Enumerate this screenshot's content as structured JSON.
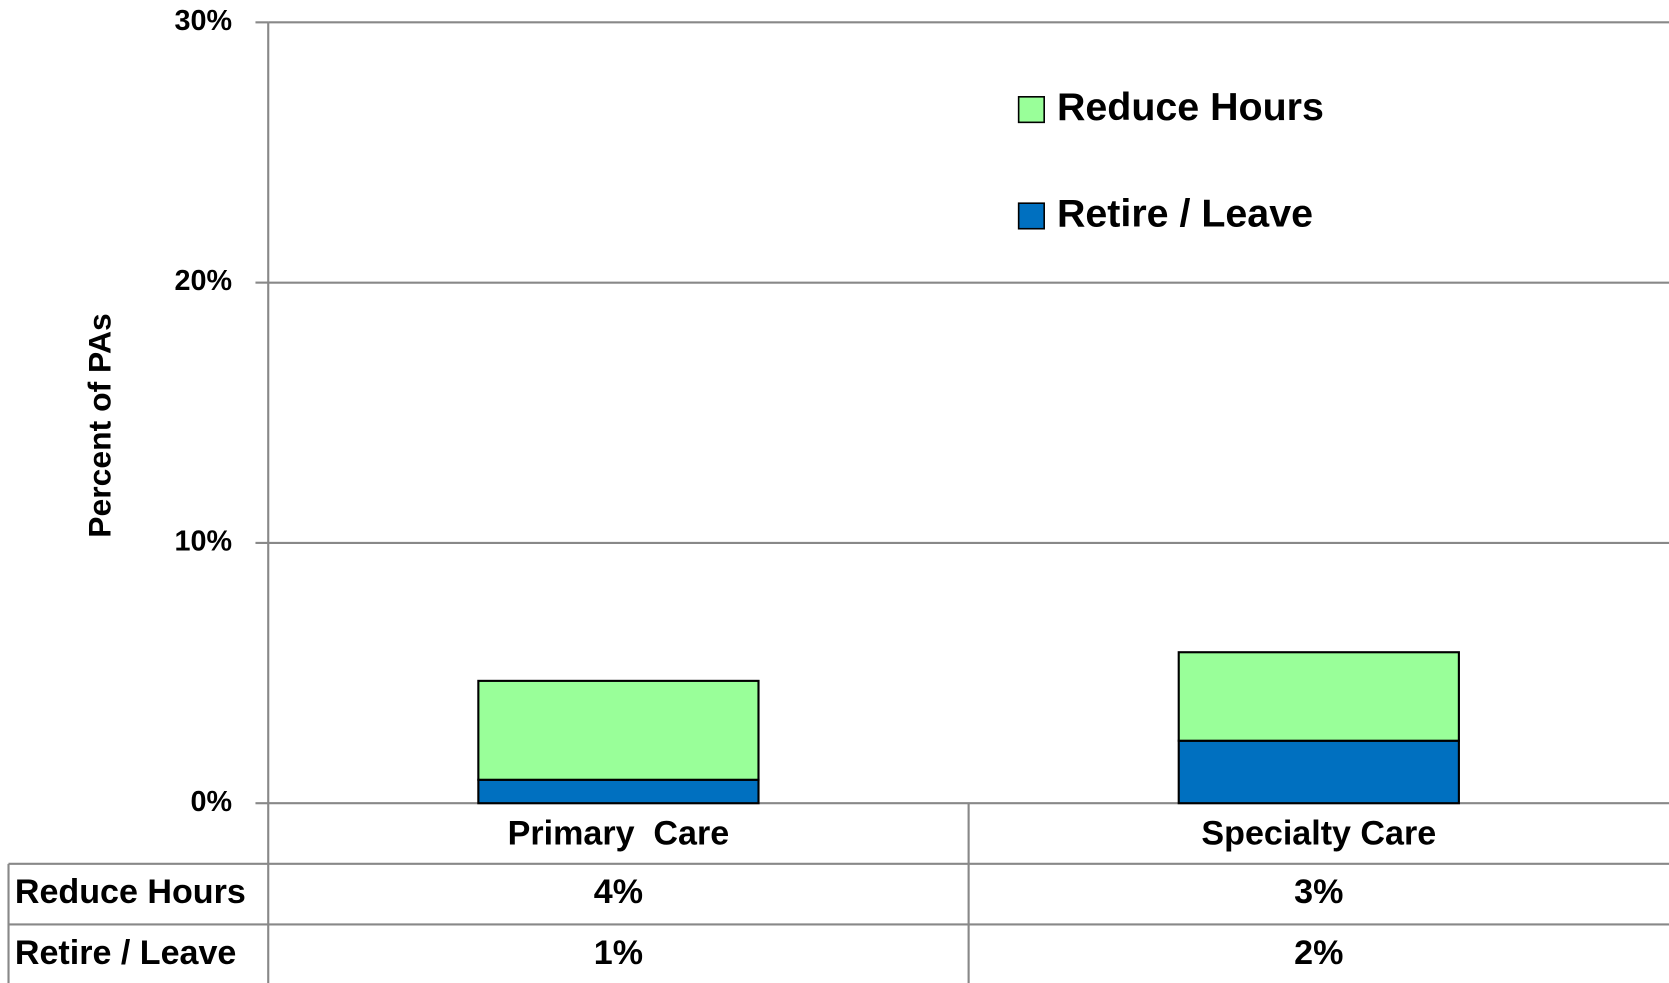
{
  "chart_data": {
    "type": "stacked_bar",
    "y_label": "Percent of PAs",
    "categories": [
      "Primary  Care",
      "Specialty Care"
    ],
    "series": [
      {
        "name": "Retire / Leave",
        "color": "#0070c0",
        "values": [
          0.9,
          2.4
        ],
        "value_labels": [
          "1%",
          "2%"
        ]
      },
      {
        "name": "Reduce Hours",
        "color": "#99ff99",
        "values": [
          3.8,
          3.4
        ],
        "value_labels": [
          "4%",
          "3%"
        ]
      }
    ],
    "ylim": [
      0,
      30
    ],
    "yticks": [
      {
        "value": 0,
        "label": "0%"
      },
      {
        "value": 10,
        "label": "10%"
      },
      {
        "value": 20,
        "label": "20%"
      },
      {
        "value": 30,
        "label": "30%"
      }
    ],
    "grid": true,
    "legend": "top-right",
    "data_table": true
  }
}
